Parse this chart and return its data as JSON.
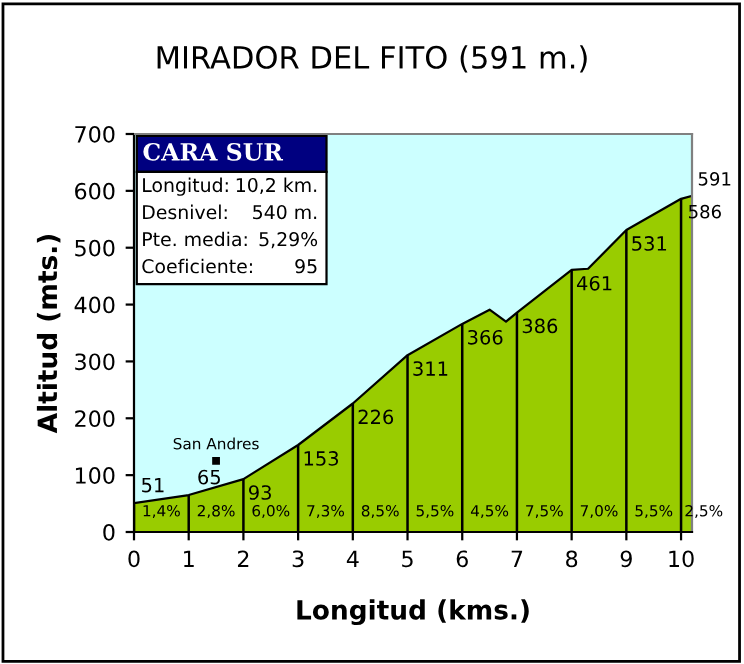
{
  "chart_data": {
    "type": "area",
    "title": "MIRADOR DEL FITO (591 m.)",
    "xlabel": "Longitud (kms.)",
    "ylabel": "Altitud (mts.)",
    "x": [
      0,
      1,
      2,
      3,
      4,
      5,
      6,
      6.5,
      6.8,
      7,
      8,
      8.3,
      9,
      10,
      10.2
    ],
    "series": [
      {
        "color": "#99cc00",
        "values": [
          51,
          65,
          93,
          153,
          226,
          311,
          366,
          391,
          370,
          386,
          461,
          463,
          531,
          586,
          591
        ]
      }
    ],
    "value_labels": [
      "51",
      "65",
      "93",
      "153",
      "226",
      "311",
      "366",
      null,
      null,
      "386",
      "461",
      null,
      "531",
      "586",
      "591"
    ],
    "xlim": [
      0,
      10.2
    ],
    "xticks": [
      0,
      1,
      2,
      3,
      4,
      5,
      6,
      7,
      8,
      9,
      10
    ],
    "ylim": [
      0,
      700
    ],
    "yticks": [
      0,
      100,
      200,
      300,
      400,
      500,
      600,
      700
    ],
    "grid": "x",
    "annotations": [
      "CARA SUR",
      "Longitud:",
      "10,2 km.",
      "Desnivel:",
      "540 m.",
      "Pte. media:",
      "5,29%",
      "Coeficiente:",
      "95",
      {
        "text": "San Andres",
        "x": 1.5,
        "y": 125
      },
      "1,4%",
      "2,8%",
      "6,0%",
      "7,3%",
      "8,5%",
      "5,5%",
      "4,5%",
      "7,5%",
      "7,0%",
      "5,5%",
      "2,5%"
    ]
  }
}
